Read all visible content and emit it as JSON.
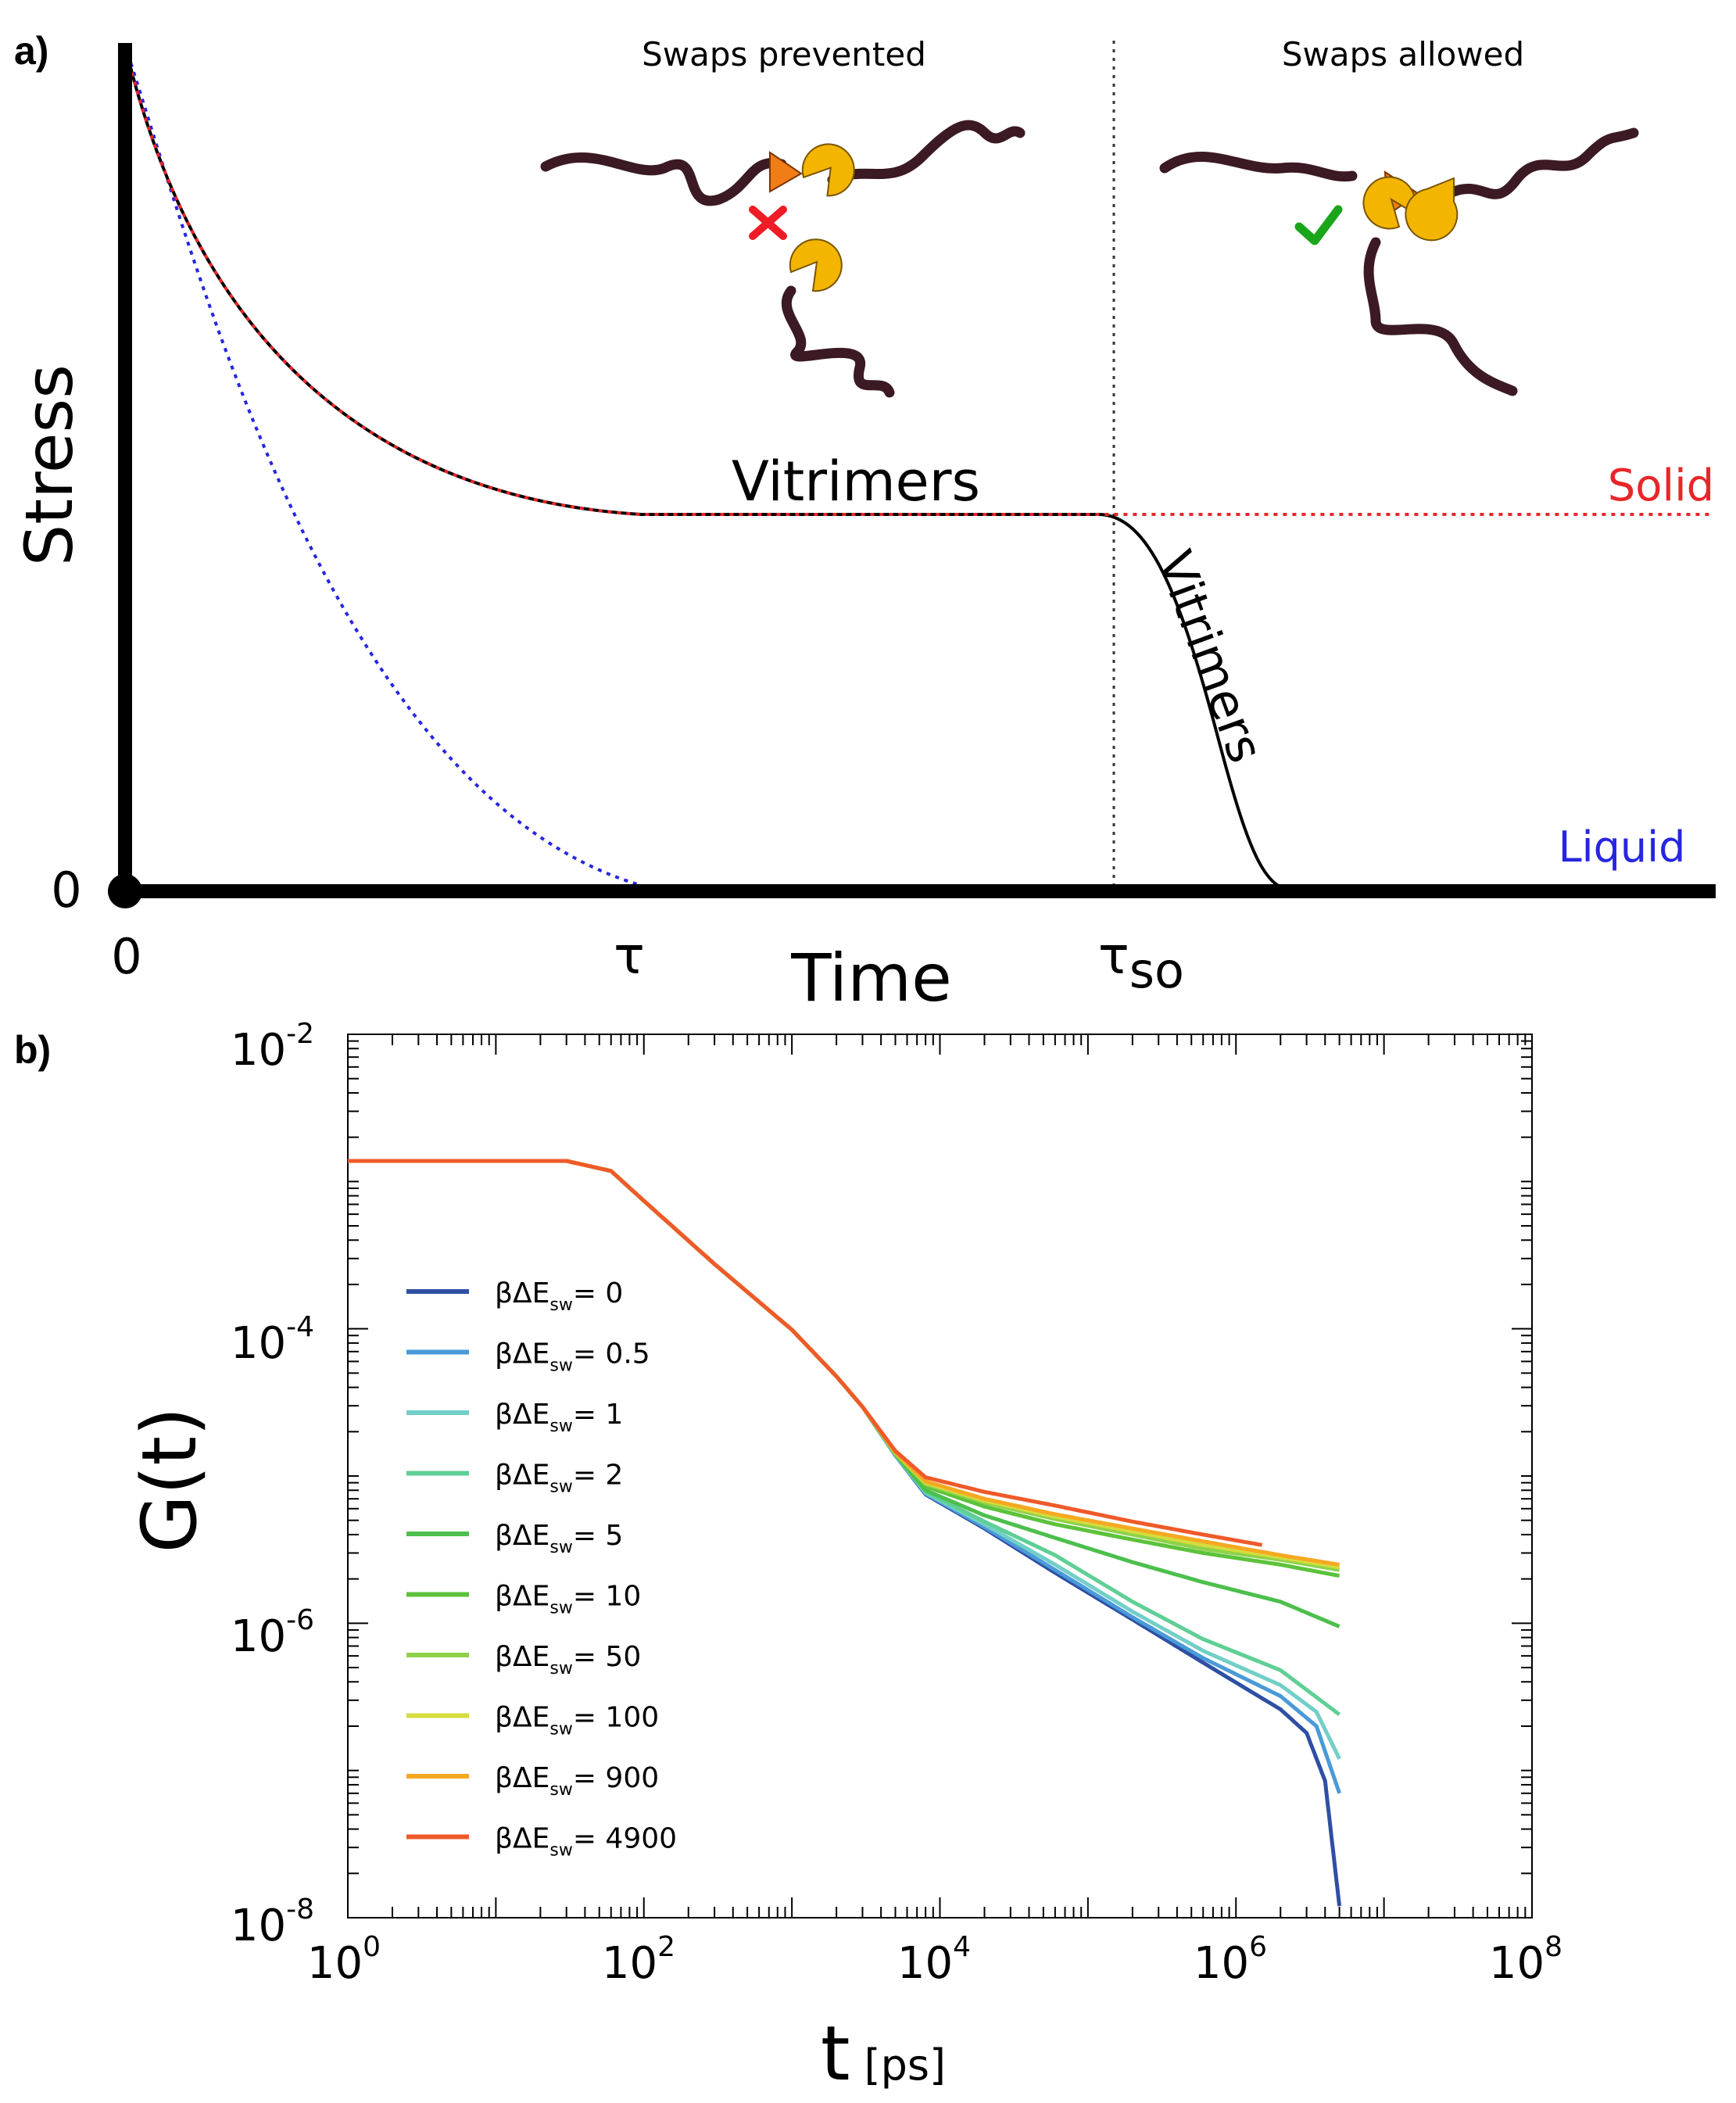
{
  "chart_data": [
    {
      "type": "line",
      "panel_label": "a)",
      "schematic": true,
      "xlabel": "Time",
      "ylabel": "Stress",
      "x_ticks": {
        "origin": "0",
        "tau": "τ",
        "tau_so_main": "τ",
        "tau_so_sub": "so"
      },
      "y_ticks": {
        "zero": "0"
      },
      "regions": {
        "left": "Swaps prevented",
        "right": "Swaps allowed"
      },
      "annotations": {
        "vitrimers_plateau": "Vitrimers",
        "vitrimers_drop": "Vitrimers",
        "solid": "Solid",
        "liquid": "Liquid"
      },
      "series": [
        {
          "name": "Vitrimers",
          "color": "#000000",
          "style": "solid",
          "description": "exponential decay to plateau, then drop to zero after τso"
        },
        {
          "name": "Solid",
          "color": "#e8262a",
          "style": "dotted",
          "description": "decay to plateau, stays at plateau"
        },
        {
          "name": "Liquid",
          "color": "#2626e0",
          "style": "dotted",
          "description": "decays to zero by τ"
        }
      ],
      "colors": {
        "chain": "#3b1a24",
        "bead": "#f3b500",
        "triangle": "#f07d15",
        "cross": "#ee1c24",
        "check": "#1aa51a"
      }
    },
    {
      "type": "line",
      "panel_label": "b)",
      "xscale": "log",
      "yscale": "log",
      "xlabel_main": "t",
      "xlabel_unit": "[ps]",
      "ylabel": "G(t)",
      "xlim": [
        1,
        100000000
      ],
      "ylim": [
        1e-08,
        0.01
      ],
      "x_tick_bases": [
        "10",
        "10",
        "10",
        "10",
        "10"
      ],
      "x_tick_exps": [
        "0",
        "2",
        "4",
        "6",
        "8"
      ],
      "y_tick_bases": [
        "10",
        "10",
        "10",
        "10"
      ],
      "y_tick_exps": [
        "-2",
        "-4",
        "-6",
        "-8"
      ],
      "legend_position": "left",
      "legend_prefix": "βΔE",
      "legend_sub": "sw",
      "series": [
        {
          "name": "βΔEsw = 0",
          "value": "0",
          "color": "#2e4fa3",
          "points": [
            [
              1,
              0.00138
            ],
            [
              30,
              0.00138
            ],
            [
              60,
              0.00118
            ],
            [
              100,
              0.00074
            ],
            [
              300,
              0.000275
            ],
            [
              1000,
              9.85e-05
            ],
            [
              2000,
              4.75e-05
            ],
            [
              3000,
              2.95e-05
            ],
            [
              5000,
              1.38e-05
            ],
            [
              8000,
              7.5e-06
            ],
            [
              20000,
              4.4e-06
            ],
            [
              60000,
              2.2e-06
            ],
            [
              200000,
              1.06e-06
            ],
            [
              600000,
              5.4e-07
            ],
            [
              2000000,
              2.6e-07
            ],
            [
              3000000,
              1.8e-07
            ],
            [
              4000000,
              8.5e-08
            ],
            [
              5000000,
              1.2e-08
            ]
          ]
        },
        {
          "name": "βΔEsw = 0.5",
          "value": "0.5",
          "color": "#4a9ad8",
          "points": [
            [
              1,
              0.00138
            ],
            [
              30,
              0.00138
            ],
            [
              60,
              0.00118
            ],
            [
              100,
              0.00074
            ],
            [
              300,
              0.000275
            ],
            [
              1000,
              9.85e-05
            ],
            [
              2000,
              4.75e-05
            ],
            [
              3000,
              2.95e-05
            ],
            [
              5000,
              1.38e-05
            ],
            [
              8000,
              7.6e-06
            ],
            [
              20000,
              4.5e-06
            ],
            [
              60000,
              2.3e-06
            ],
            [
              200000,
              1.1e-06
            ],
            [
              600000,
              5.8e-07
            ],
            [
              2000000,
              3.2e-07
            ],
            [
              3500000,
              2e-07
            ],
            [
              5000000,
              7e-08
            ]
          ]
        },
        {
          "name": "βΔEsw = 1",
          "value": "1",
          "color": "#72cfc8",
          "points": [
            [
              1,
              0.00138
            ],
            [
              30,
              0.00138
            ],
            [
              60,
              0.00118
            ],
            [
              100,
              0.00074
            ],
            [
              300,
              0.000275
            ],
            [
              1000,
              9.85e-05
            ],
            [
              2000,
              4.75e-05
            ],
            [
              3000,
              2.95e-05
            ],
            [
              5000,
              1.39e-05
            ],
            [
              8000,
              7.7e-06
            ],
            [
              20000,
              4.7e-06
            ],
            [
              60000,
              2.5e-06
            ],
            [
              200000,
              1.2e-06
            ],
            [
              600000,
              6.5e-07
            ],
            [
              2000000,
              3.8e-07
            ],
            [
              3500000,
              2.5e-07
            ],
            [
              5000000,
              1.2e-07
            ]
          ]
        },
        {
          "name": "βΔEsw = 2",
          "value": "2",
          "color": "#5fcf95",
          "points": [
            [
              1,
              0.00138
            ],
            [
              30,
              0.00138
            ],
            [
              60,
              0.00118
            ],
            [
              100,
              0.00074
            ],
            [
              300,
              0.000275
            ],
            [
              1000,
              9.85e-05
            ],
            [
              2000,
              4.75e-05
            ],
            [
              3000,
              2.95e-05
            ],
            [
              5000,
              1.4e-05
            ],
            [
              8000,
              7.8e-06
            ],
            [
              20000,
              4.9e-06
            ],
            [
              60000,
              2.9e-06
            ],
            [
              200000,
              1.4e-06
            ],
            [
              600000,
              7.8e-07
            ],
            [
              2000000,
              4.8e-07
            ],
            [
              5000000,
              2.4e-07
            ]
          ]
        },
        {
          "name": "βΔEsw = 5",
          "value": "5",
          "color": "#4cbf4c",
          "points": [
            [
              1,
              0.00138
            ],
            [
              30,
              0.00138
            ],
            [
              60,
              0.00118
            ],
            [
              100,
              0.00074
            ],
            [
              300,
              0.000275
            ],
            [
              1000,
              9.85e-05
            ],
            [
              2000,
              4.75e-05
            ],
            [
              3000,
              2.95e-05
            ],
            [
              5000,
              1.41e-05
            ],
            [
              8000,
              8e-06
            ],
            [
              20000,
              5.4e-06
            ],
            [
              60000,
              3.8e-06
            ],
            [
              200000,
              2.6e-06
            ],
            [
              600000,
              1.9e-06
            ],
            [
              2000000,
              1.4e-06
            ],
            [
              5000000,
              9.5e-07
            ]
          ]
        },
        {
          "name": "βΔEsw = 10",
          "value": "10",
          "color": "#5cc23a",
          "points": [
            [
              1,
              0.00138
            ],
            [
              30,
              0.00138
            ],
            [
              60,
              0.00118
            ],
            [
              100,
              0.00074
            ],
            [
              300,
              0.000275
            ],
            [
              1000,
              9.85e-05
            ],
            [
              2000,
              4.75e-05
            ],
            [
              3000,
              2.95e-05
            ],
            [
              5000,
              1.42e-05
            ],
            [
              8000,
              8.5e-06
            ],
            [
              20000,
              6.2e-06
            ],
            [
              60000,
              4.7e-06
            ],
            [
              200000,
              3.7e-06
            ],
            [
              600000,
              3e-06
            ],
            [
              2000000,
              2.5e-06
            ],
            [
              5000000,
              2.1e-06
            ]
          ]
        },
        {
          "name": "βΔEsw = 50",
          "value": "50",
          "color": "#8ed24a",
          "points": [
            [
              1,
              0.00138
            ],
            [
              30,
              0.00138
            ],
            [
              60,
              0.00118
            ],
            [
              100,
              0.00074
            ],
            [
              300,
              0.000275
            ],
            [
              1000,
              9.85e-05
            ],
            [
              2000,
              4.75e-05
            ],
            [
              3000,
              2.95e-05
            ],
            [
              5000,
              1.43e-05
            ],
            [
              8000,
              8.8e-06
            ],
            [
              20000,
              6.6e-06
            ],
            [
              60000,
              5.1e-06
            ],
            [
              200000,
              4e-06
            ],
            [
              600000,
              3.2e-06
            ],
            [
              2000000,
              2.7e-06
            ],
            [
              5000000,
              2.3e-06
            ]
          ]
        },
        {
          "name": "βΔEsw = 100",
          "value": "100",
          "color": "#d4dc3c",
          "points": [
            [
              1,
              0.00138
            ],
            [
              30,
              0.00138
            ],
            [
              60,
              0.00118
            ],
            [
              100,
              0.00074
            ],
            [
              300,
              0.000275
            ],
            [
              1000,
              9.85e-05
            ],
            [
              2000,
              4.75e-05
            ],
            [
              3000,
              2.95e-05
            ],
            [
              5000,
              1.44e-05
            ],
            [
              8000,
              9e-06
            ],
            [
              20000,
              6.8e-06
            ],
            [
              60000,
              5.3e-06
            ],
            [
              200000,
              4.2e-06
            ],
            [
              600000,
              3.4e-06
            ],
            [
              2000000,
              2.8e-06
            ],
            [
              5000000,
              2.4e-06
            ]
          ]
        },
        {
          "name": "βΔEsw = 900",
          "value": "900",
          "color": "#f6a821",
          "points": [
            [
              1,
              0.00138
            ],
            [
              30,
              0.00138
            ],
            [
              60,
              0.00118
            ],
            [
              100,
              0.00074
            ],
            [
              300,
              0.000275
            ],
            [
              1000,
              9.85e-05
            ],
            [
              2000,
              4.75e-05
            ],
            [
              3000,
              2.95e-05
            ],
            [
              5000,
              1.45e-05
            ],
            [
              8000,
              9.2e-06
            ],
            [
              20000,
              7e-06
            ],
            [
              60000,
              5.5e-06
            ],
            [
              200000,
              4.4e-06
            ],
            [
              600000,
              3.6e-06
            ],
            [
              2000000,
              2.9e-06
            ],
            [
              5000000,
              2.5e-06
            ]
          ]
        },
        {
          "name": "βΔEsw = 4900",
          "value": "4900",
          "color": "#ef5a2a",
          "points": [
            [
              1,
              0.00138
            ],
            [
              30,
              0.00138
            ],
            [
              60,
              0.00118
            ],
            [
              100,
              0.00074
            ],
            [
              300,
              0.000275
            ],
            [
              1000,
              9.85e-05
            ],
            [
              2000,
              4.75e-05
            ],
            [
              3000,
              2.95e-05
            ],
            [
              5000,
              1.48e-05
            ],
            [
              8000,
              9.8e-06
            ],
            [
              20000,
              7.8e-06
            ],
            [
              60000,
              6.3e-06
            ],
            [
              200000,
              4.9e-06
            ],
            [
              600000,
              4e-06
            ],
            [
              1500000,
              3.4e-06
            ]
          ]
        }
      ]
    }
  ]
}
